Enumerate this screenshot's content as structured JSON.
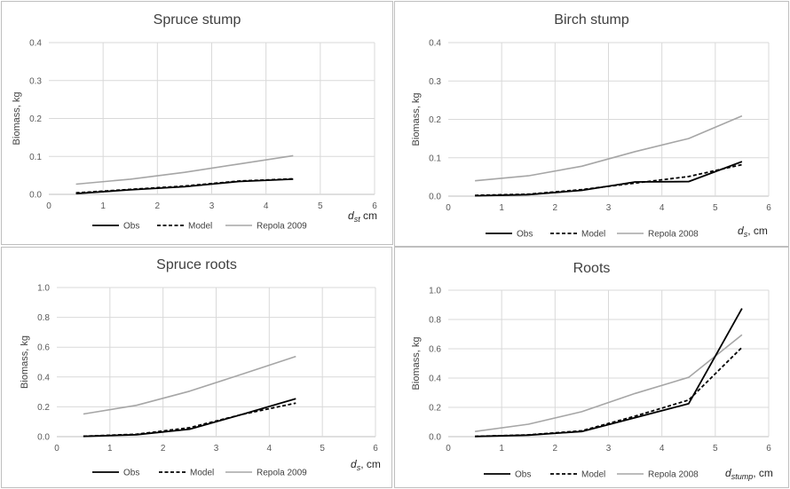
{
  "chart_data": [
    {
      "type": "line",
      "title": "Spruce stump",
      "ylabel": "Biomass, kg",
      "xlabel_var": "d",
      "xlabel_sub": "st",
      "xlabel_unit": " cm",
      "xlim": [
        0,
        6
      ],
      "ylim": [
        0,
        0.4
      ],
      "xticks": [
        "0",
        "1",
        "2",
        "3",
        "4",
        "5",
        "6"
      ],
      "yticks": [
        "0.0",
        "0.1",
        "0.2",
        "0.3",
        "0.4"
      ],
      "grid": true,
      "legend": "bottom",
      "x": [
        0.5,
        1.5,
        2.5,
        3.5,
        4.5
      ],
      "series": [
        {
          "name": "Obs",
          "style": "solid",
          "color": "#000000",
          "values": [
            0.002,
            0.012,
            0.02,
            0.034,
            0.04
          ]
        },
        {
          "name": "Model",
          "style": "dashed",
          "color": "#000000",
          "values": [
            0.004,
            0.013,
            0.022,
            0.035,
            0.041
          ]
        },
        {
          "name": "Repola 2009",
          "style": "solid",
          "color": "#a6a6a6",
          "values": [
            0.027,
            0.04,
            0.058,
            0.08,
            0.102
          ]
        }
      ]
    },
    {
      "type": "line",
      "title": "Birch stump",
      "ylabel": "Biomass, kg",
      "xlabel_var": "d",
      "xlabel_sub": "s",
      "xlabel_unit": ", cm",
      "xlim": [
        0,
        6
      ],
      "ylim": [
        0,
        0.4
      ],
      "xticks": [
        "0",
        "1",
        "2",
        "3",
        "4",
        "5",
        "6"
      ],
      "yticks": [
        "0.0",
        "0.1",
        "0.2",
        "0.3",
        "0.4"
      ],
      "grid": true,
      "legend": "bottom",
      "x": [
        0.5,
        1.5,
        2.5,
        3.5,
        4.5,
        5.5
      ],
      "series": [
        {
          "name": "Obs",
          "style": "solid",
          "color": "#000000",
          "values": [
            0.001,
            0.004,
            0.015,
            0.037,
            0.038,
            0.09
          ]
        },
        {
          "name": "Model",
          "style": "dashed",
          "color": "#000000",
          "values": [
            0.002,
            0.005,
            0.017,
            0.034,
            0.051,
            0.082
          ]
        },
        {
          "name": "Repola 2008",
          "style": "solid",
          "color": "#a6a6a6",
          "values": [
            0.04,
            0.053,
            0.078,
            0.116,
            0.15,
            0.209
          ]
        }
      ]
    },
    {
      "type": "line",
      "title": "Spruce roots",
      "ylabel": "Biomass, kg",
      "xlabel_var": "d",
      "xlabel_sub": "s",
      "xlabel_unit": ", cm",
      "xlim": [
        0,
        6
      ],
      "ylim": [
        0,
        1.0
      ],
      "xticks": [
        "0",
        "1",
        "2",
        "3",
        "4",
        "5",
        "6"
      ],
      "yticks": [
        "0.0",
        "0.2",
        "0.4",
        "0.6",
        "0.8",
        "1.0"
      ],
      "grid": true,
      "legend": "bottom",
      "x": [
        0.5,
        1.5,
        2.5,
        3.5,
        4.5
      ],
      "series": [
        {
          "name": "Obs",
          "style": "solid",
          "color": "#000000",
          "values": [
            0.002,
            0.013,
            0.05,
            0.15,
            0.255
          ]
        },
        {
          "name": "Model",
          "style": "dashed",
          "color": "#000000",
          "values": [
            0.003,
            0.016,
            0.06,
            0.15,
            0.225
          ]
        },
        {
          "name": "Repola 2009",
          "style": "solid",
          "color": "#a6a6a6",
          "values": [
            0.152,
            0.21,
            0.305,
            0.42,
            0.538
          ]
        }
      ]
    },
    {
      "type": "line",
      "title": "Roots",
      "ylabel": "Biomass, kg",
      "xlabel_var": "d",
      "xlabel_sub": "stump",
      "xlabel_unit": ", cm",
      "xlim": [
        0,
        6
      ],
      "ylim": [
        0,
        1.0
      ],
      "xticks": [
        "0",
        "1",
        "2",
        "3",
        "4",
        "5",
        "6"
      ],
      "yticks": [
        "0.0",
        "0.2",
        "0.4",
        "0.6",
        "0.8",
        "1.0"
      ],
      "grid": true,
      "legend": "bottom",
      "x": [
        0.5,
        1.5,
        2.5,
        3.5,
        4.5,
        5.5
      ],
      "series": [
        {
          "name": "Obs",
          "style": "solid",
          "color": "#000000",
          "values": [
            0.001,
            0.01,
            0.035,
            0.13,
            0.225,
            0.875
          ]
        },
        {
          "name": "Model",
          "style": "dashed",
          "color": "#000000",
          "values": [
            0.002,
            0.012,
            0.04,
            0.14,
            0.25,
            0.61
          ]
        },
        {
          "name": "Repola 2008",
          "style": "solid",
          "color": "#a6a6a6",
          "values": [
            0.035,
            0.085,
            0.17,
            0.295,
            0.405,
            0.695
          ]
        }
      ]
    }
  ]
}
